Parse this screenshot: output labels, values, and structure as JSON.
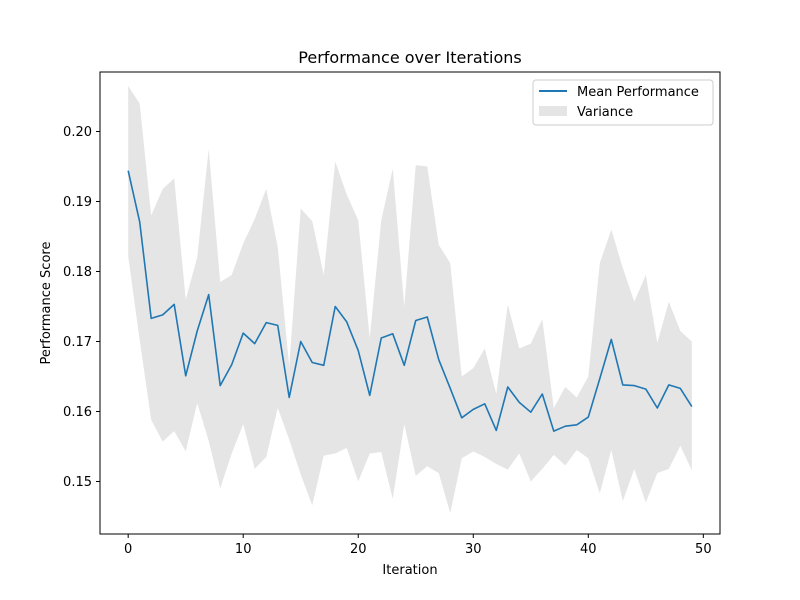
{
  "chart_data": {
    "type": "line",
    "title": "Performance over Iterations",
    "xlabel": "Iteration",
    "ylabel": "Performance Score",
    "xlim": [
      -2.45,
      51.45
    ],
    "ylim": [
      0.1425,
      0.2085
    ],
    "xticks": [
      0,
      10,
      20,
      30,
      40,
      50
    ],
    "yticks": [
      0.15,
      0.16,
      0.17,
      0.18,
      0.19,
      0.2
    ],
    "ytick_labels": [
      "0.15",
      "0.16",
      "0.17",
      "0.18",
      "0.19",
      "0.20"
    ],
    "grid": false,
    "legend": {
      "placement": "top-right",
      "entries": [
        "Mean Performance",
        "Variance"
      ]
    },
    "colors": {
      "line": "#1f77b4",
      "band": "#bfbfbf"
    },
    "x": [
      0,
      1,
      2,
      3,
      4,
      5,
      6,
      7,
      8,
      9,
      10,
      11,
      12,
      13,
      14,
      15,
      16,
      17,
      18,
      19,
      20,
      21,
      22,
      23,
      24,
      25,
      26,
      27,
      28,
      29,
      30,
      31,
      32,
      33,
      34,
      35,
      36,
      37,
      38,
      39,
      40,
      41,
      42,
      43,
      44,
      45,
      46,
      47,
      48,
      49
    ],
    "series": [
      {
        "name": "Mean Performance",
        "values": [
          0.1944,
          0.1871,
          0.1733,
          0.1738,
          0.1753,
          0.1651,
          0.1715,
          0.1767,
          0.1637,
          0.1667,
          0.1712,
          0.1697,
          0.1727,
          0.1723,
          0.162,
          0.17,
          0.167,
          0.1666,
          0.175,
          0.1728,
          0.1687,
          0.1623,
          0.1705,
          0.1711,
          0.1666,
          0.173,
          0.1735,
          0.1674,
          0.1633,
          0.1591,
          0.1603,
          0.1611,
          0.1573,
          0.1635,
          0.1613,
          0.1599,
          0.1625,
          0.1572,
          0.1579,
          0.1581,
          0.1592,
          0.1647,
          0.1703,
          0.1638,
          0.1637,
          0.1632,
          0.1605,
          0.1638,
          0.1633,
          0.1607
        ]
      },
      {
        "name": "Variance",
        "upper": [
          0.2065,
          0.204,
          0.188,
          0.1918,
          0.1933,
          0.176,
          0.182,
          0.1975,
          0.1785,
          0.1795,
          0.184,
          0.1875,
          0.1918,
          0.1835,
          0.1665,
          0.189,
          0.1872,
          0.1795,
          0.1957,
          0.191,
          0.1873,
          0.1705,
          0.1873,
          0.1947,
          0.175,
          0.1952,
          0.195,
          0.1838,
          0.1812,
          0.165,
          0.1662,
          0.169,
          0.1625,
          0.1753,
          0.169,
          0.1697,
          0.1732,
          0.1605,
          0.1635,
          0.162,
          0.165,
          0.1812,
          0.186,
          0.1805,
          0.1757,
          0.1795,
          0.1698,
          0.1757,
          0.1715,
          0.17
        ],
        "lower": [
          0.1822,
          0.1702,
          0.1588,
          0.1557,
          0.1572,
          0.1543,
          0.1612,
          0.1558,
          0.149,
          0.154,
          0.1582,
          0.1518,
          0.1535,
          0.1605,
          0.156,
          0.151,
          0.1466,
          0.1537,
          0.154,
          0.1548,
          0.15,
          0.154,
          0.1542,
          0.1475,
          0.1582,
          0.1508,
          0.1522,
          0.1512,
          0.1455,
          0.1533,
          0.1543,
          0.1535,
          0.1525,
          0.1517,
          0.154,
          0.15,
          0.1518,
          0.1538,
          0.1523,
          0.1545,
          0.1533,
          0.1483,
          0.1545,
          0.1472,
          0.1518,
          0.147,
          0.1512,
          0.1518,
          0.1551,
          0.1516
        ]
      }
    ]
  }
}
